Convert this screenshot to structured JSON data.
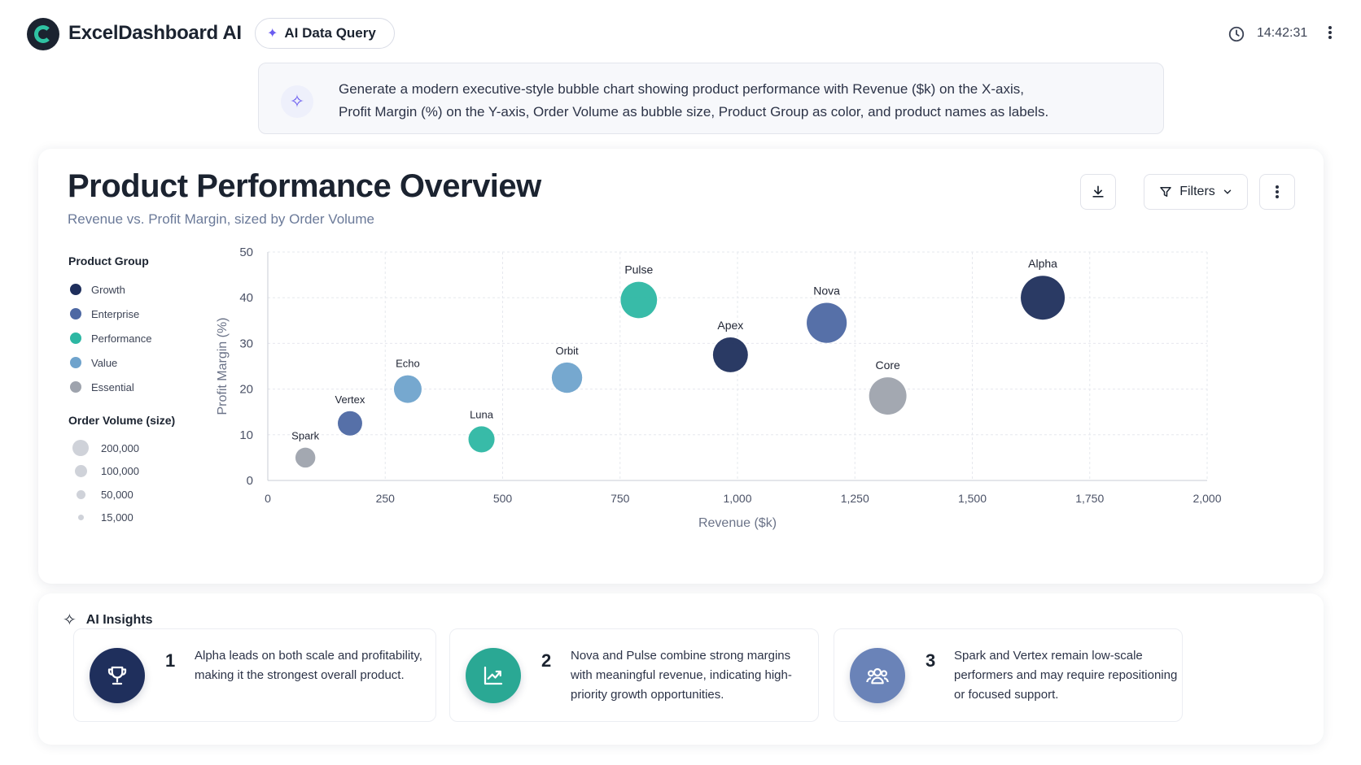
{
  "app": {
    "title": "ExcelDashboard AI",
    "query_button": "AI Data Query",
    "time": "14:42:31"
  },
  "prompt": {
    "text_line1": "Generate a modern executive-style bubble chart showing product performance with Revenue ($k) on the X-axis,",
    "text_line2": "Profit Margin (%) on the Y-axis, Order Volume as bubble size, Product Group as color, and product names as labels."
  },
  "card": {
    "title": "Product Performance Overview",
    "subtitle": "Revenue vs. Profit Margin, sized by Order Volume",
    "filters_label": "Filters"
  },
  "legend": {
    "group_title": "Product Group",
    "groups": [
      {
        "name": "Growth",
        "color": "#1f2f5c"
      },
      {
        "name": "Enterprise",
        "color": "#4d68a3"
      },
      {
        "name": "Performance",
        "color": "#2db7a3"
      },
      {
        "name": "Value",
        "color": "#6fa3cc"
      },
      {
        "name": "Essential",
        "color": "#9ea3ad"
      }
    ],
    "size_title": "Order Volume (size)",
    "sizes": [
      {
        "label": "200,000",
        "value": 200000
      },
      {
        "label": "100,000",
        "value": 100000
      },
      {
        "label": "50,000",
        "value": 50000
      },
      {
        "label": "15,000",
        "value": 15000
      }
    ]
  },
  "chart_data": {
    "type": "scatter",
    "xlabel": "Revenue ($k)",
    "ylabel": "Profit Margin (%)",
    "xlim": [
      0,
      2000
    ],
    "ylim": [
      0,
      50
    ],
    "x_ticks": [
      "0",
      "250",
      "500",
      "750",
      "1,000",
      "1,250",
      "1,500",
      "1,750",
      "2,000"
    ],
    "y_ticks": [
      "0",
      "10",
      "20",
      "30",
      "40",
      "50"
    ],
    "grid": true,
    "points": [
      {
        "name": "Spark",
        "group": "Essential",
        "x": 80,
        "y": 5,
        "volume": 15000
      },
      {
        "name": "Vertex",
        "group": "Enterprise",
        "x": 175,
        "y": 12.5,
        "volume": 35000
      },
      {
        "name": "Echo",
        "group": "Value",
        "x": 298,
        "y": 20,
        "volume": 55000
      },
      {
        "name": "Luna",
        "group": "Performance",
        "x": 455,
        "y": 9,
        "volume": 45000
      },
      {
        "name": "Orbit",
        "group": "Value",
        "x": 637,
        "y": 22.5,
        "volume": 75000
      },
      {
        "name": "Pulse",
        "group": "Performance",
        "x": 790,
        "y": 39.5,
        "volume": 130000
      },
      {
        "name": "Apex",
        "group": "Growth",
        "x": 985,
        "y": 27.5,
        "volume": 115000
      },
      {
        "name": "Nova",
        "group": "Enterprise",
        "x": 1190,
        "y": 34.5,
        "volume": 170000
      },
      {
        "name": "Core",
        "group": "Essential",
        "x": 1320,
        "y": 18.5,
        "volume": 140000
      },
      {
        "name": "Alpha",
        "group": "Growth",
        "x": 1650,
        "y": 40,
        "volume": 220000
      }
    ]
  },
  "insights": {
    "title": "AI Insights",
    "items": [
      {
        "num": "1",
        "text": "Alpha leads on both scale and profitability, making it the strongest overall product.",
        "icon": "trophy-icon",
        "color": "#1f2f5c"
      },
      {
        "num": "2",
        "text": "Nova and Pulse combine strong margins with meaningful revenue, indicating high-priority growth opportunities.",
        "icon": "trending-up-icon",
        "color": "#2aa894"
      },
      {
        "num": "3",
        "text": "Spark and Vertex remain low-scale performers and may require repositioning or focused support.",
        "icon": "users-icon",
        "color": "#6a83b8"
      }
    ]
  }
}
